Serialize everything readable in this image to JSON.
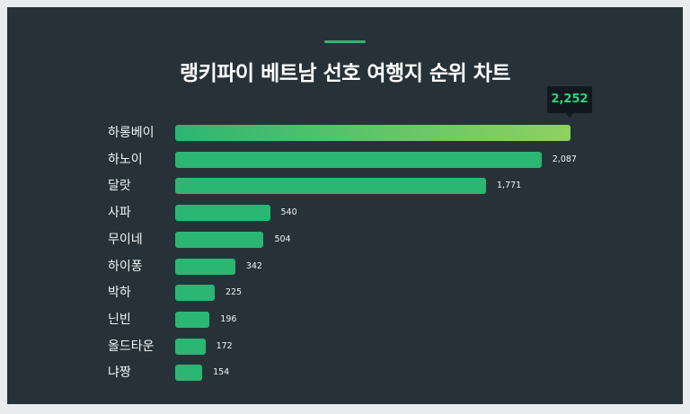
{
  "chart_data": {
    "type": "bar",
    "orientation": "horizontal",
    "title": "랭키파이 베트남 선호 여행지 순위 차트",
    "categories": [
      "하롱베이",
      "하노이",
      "달랏",
      "사파",
      "무이네",
      "하이퐁",
      "박하",
      "닌빈",
      "올드타운",
      "냐짱"
    ],
    "values": [
      2252,
      2087,
      1771,
      540,
      504,
      342,
      225,
      196,
      172,
      154
    ],
    "value_labels": [
      "2,252",
      "2,087",
      "1,771",
      "540",
      "504",
      "342",
      "225",
      "196",
      "172",
      "154"
    ],
    "xlim": [
      0,
      2252
    ],
    "grid": false,
    "highlight_index": 0
  },
  "colors": {
    "background": "#263238",
    "bar": "#2bb673",
    "accent": "#2bb673",
    "tooltip_text": "#2bd47f"
  }
}
